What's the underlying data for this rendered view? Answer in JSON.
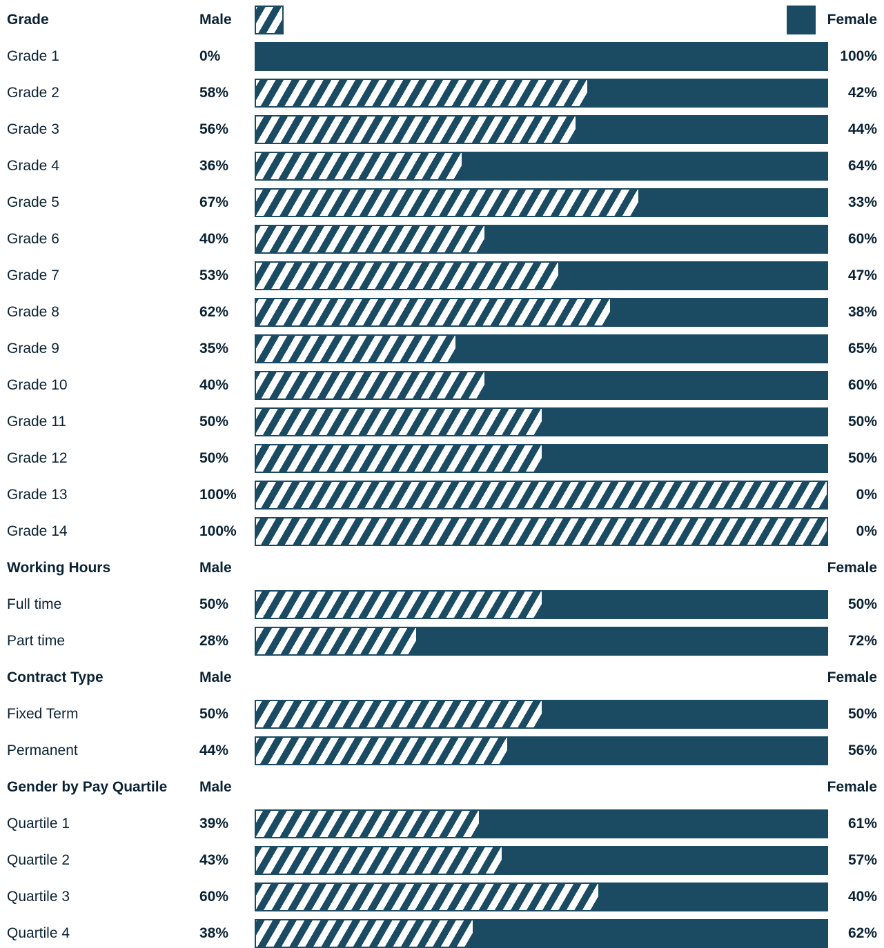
{
  "colors": {
    "bar": "#1a4b63",
    "stripe": "#ffffff"
  },
  "legend": {
    "male_swatch": "hatched",
    "female_swatch": "solid"
  },
  "chart_data": {
    "type": "bar",
    "orientation": "horizontal-stacked-100",
    "sections": [
      {
        "title": "Grade",
        "male_header": "Male",
        "female_header": "Female",
        "show_legend": true,
        "rows": [
          {
            "label": "Grade 1",
            "male": 0,
            "female": 100,
            "male_label": "0%",
            "female_label": "100%"
          },
          {
            "label": "Grade 2",
            "male": 58,
            "female": 42,
            "male_label": "58%",
            "female_label": "42%"
          },
          {
            "label": "Grade 3",
            "male": 56,
            "female": 44,
            "male_label": "56%",
            "female_label": "44%"
          },
          {
            "label": "Grade 4",
            "male": 36,
            "female": 64,
            "male_label": "36%",
            "female_label": "64%"
          },
          {
            "label": "Grade 5",
            "male": 67,
            "female": 33,
            "male_label": "67%",
            "female_label": "33%"
          },
          {
            "label": "Grade 6",
            "male": 40,
            "female": 60,
            "male_label": "40%",
            "female_label": "60%"
          },
          {
            "label": "Grade 7",
            "male": 53,
            "female": 47,
            "male_label": "53%",
            "female_label": "47%"
          },
          {
            "label": "Grade 8",
            "male": 62,
            "female": 38,
            "male_label": "62%",
            "female_label": "38%"
          },
          {
            "label": "Grade 9",
            "male": 35,
            "female": 65,
            "male_label": "35%",
            "female_label": "65%"
          },
          {
            "label": "Grade 10",
            "male": 40,
            "female": 60,
            "male_label": "40%",
            "female_label": "60%"
          },
          {
            "label": "Grade 11",
            "male": 50,
            "female": 50,
            "male_label": "50%",
            "female_label": "50%"
          },
          {
            "label": "Grade 12",
            "male": 50,
            "female": 50,
            "male_label": "50%",
            "female_label": "50%"
          },
          {
            "label": "Grade 13",
            "male": 100,
            "female": 0,
            "male_label": "100%",
            "female_label": "0%"
          },
          {
            "label": "Grade 14",
            "male": 100,
            "female": 0,
            "male_label": "100%",
            "female_label": "0%"
          }
        ]
      },
      {
        "title": "Working Hours",
        "male_header": "Male",
        "female_header": "Female",
        "show_legend": false,
        "rows": [
          {
            "label": "Full time",
            "male": 50,
            "female": 50,
            "male_label": "50%",
            "female_label": "50%"
          },
          {
            "label": "Part time",
            "male": 28,
            "female": 72,
            "male_label": "28%",
            "female_label": "72%"
          }
        ]
      },
      {
        "title": "Contract Type",
        "male_header": "Male",
        "female_header": "Female",
        "show_legend": false,
        "rows": [
          {
            "label": "Fixed Term",
            "male": 50,
            "female": 50,
            "male_label": "50%",
            "female_label": "50%"
          },
          {
            "label": "Permanent",
            "male": 44,
            "female": 56,
            "male_label": "44%",
            "female_label": "56%"
          }
        ]
      },
      {
        "title": "Gender by Pay Quartile",
        "male_header": "Male",
        "female_header": "Female",
        "show_legend": false,
        "rows": [
          {
            "label": "Quartile 1",
            "male": 39,
            "female": 61,
            "male_label": "39%",
            "female_label": "61%"
          },
          {
            "label": "Quartile 2",
            "male": 43,
            "female": 57,
            "male_label": "43%",
            "female_label": "57%"
          },
          {
            "label": "Quartile 3",
            "male": 60,
            "female": 40,
            "male_label": "60%",
            "female_label": "40%"
          },
          {
            "label": "Quartile 4",
            "male": 38,
            "female": 62,
            "male_label": "38%",
            "female_label": "62%"
          }
        ]
      }
    ]
  }
}
